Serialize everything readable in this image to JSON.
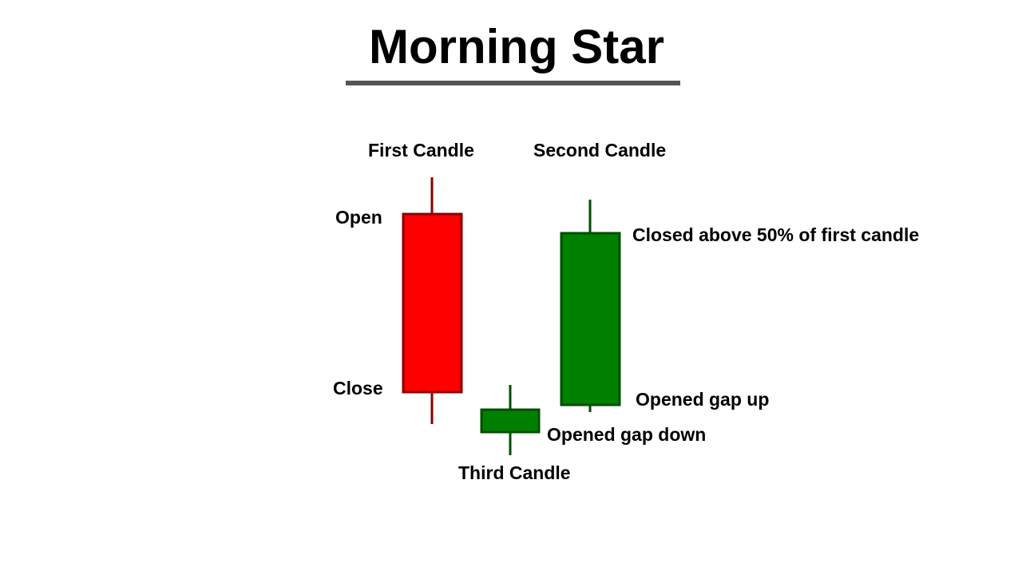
{
  "title": "Morning Star",
  "labels": {
    "first_candle": "First Candle",
    "second_candle": "Second Candle",
    "third_candle": "Third Candle",
    "open": "Open",
    "close": "Close",
    "closed_above": "Closed above 50% of first candle",
    "opened_gap_up": "Opened gap up",
    "opened_gap_down": "Opened gap down"
  },
  "colors": {
    "bearish_fill": "#ff0000",
    "bearish_edge": "#8b0000",
    "bullish_fill": "#008000",
    "bullish_edge": "#004d00",
    "title_rule": "#555555"
  },
  "candles": [
    {
      "label": "First Candle",
      "direction": "bearish"
    },
    {
      "label": "Third Candle",
      "direction": "bullish"
    },
    {
      "label": "Second Candle",
      "direction": "bullish"
    }
  ]
}
